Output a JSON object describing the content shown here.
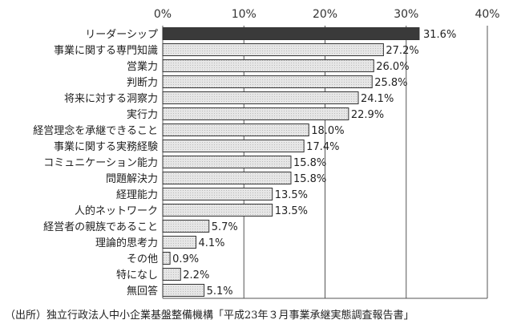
{
  "chart_data": {
    "type": "bar",
    "orientation": "horizontal",
    "categories": [
      "リーダーシップ",
      "事業に関する専門知識",
      "営業力",
      "判断力",
      "将来に対する洞察力",
      "実行力",
      "経営理念を承継できること",
      "事業に関する実務経験",
      "コミュニケーション能力",
      "問題解決力",
      "経理能力",
      "人的ネットワーク",
      "経営者の親族であること",
      "理論的思考力",
      "その他",
      "特になし",
      "無回答"
    ],
    "values": [
      31.6,
      27.2,
      26.0,
      25.8,
      24.1,
      22.9,
      18.0,
      17.4,
      15.8,
      15.8,
      13.5,
      13.5,
      5.7,
      4.1,
      0.9,
      2.2,
      5.1
    ],
    "value_labels": [
      "31.6%",
      "27.2%",
      "26.0%",
      "25.8%",
      "24.1%",
      "22.9%",
      "18.0%",
      "17.4%",
      "15.8%",
      "15.8%",
      "13.5%",
      "13.5%",
      "5.7%",
      "4.1%",
      "0.9%",
      "2.2%",
      "5.1%"
    ],
    "xlim": [
      0,
      40
    ],
    "xticks": [
      "0%",
      "10%",
      "20%",
      "30%",
      "40%"
    ],
    "xtick_values": [
      0,
      10,
      20,
      30,
      40
    ],
    "grid": true,
    "colors": {
      "highlight": "#3a3a3a",
      "bar": "#e6e6e6",
      "border": "#333333"
    }
  },
  "source": "（出所）独立行政法人中小企業基盤整備機構「平成23年３月事業承継実態調査報告書」"
}
